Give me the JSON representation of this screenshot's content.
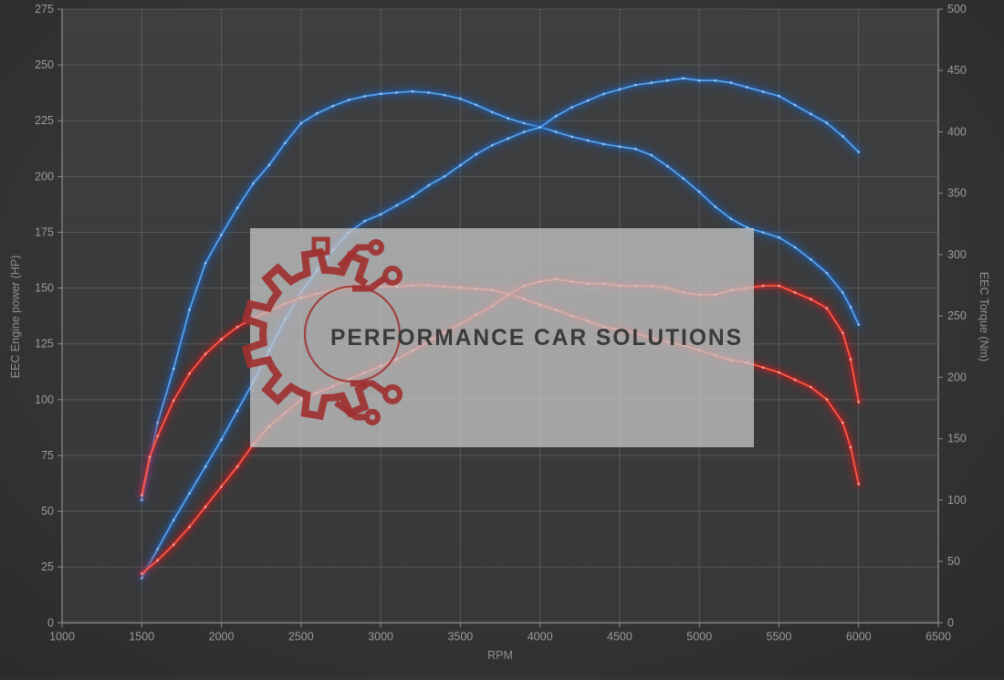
{
  "watermark": {
    "text": "PERFORMANCE CAR SOLUTIONS"
  },
  "colors": {
    "background": "#333435",
    "plot_fill_top": "#3e3f41",
    "plot_fill_bottom": "#38393a",
    "grid": "#5f5f5f",
    "axis": "#8d8d8d",
    "tick_text": "#9b9b9b",
    "blue_core": "#58a0e8",
    "blue_glow": "#1e5fb8",
    "blue_marker": "#9cc8f2",
    "red_core": "#ff5648",
    "red_glow": "#c01f1f",
    "red_marker": "#ffa49a",
    "watermark_fill": "#c8c8c8",
    "watermark_text": "#3a3a3a",
    "logo_red": "#9e3131"
  },
  "chart_data": {
    "type": "line",
    "title": "",
    "xlabel": "RPM",
    "ylabel_left": "EEC Engine power (HP)",
    "ylabel_right": "EEC Torque (Nm)",
    "x_range": [
      1000,
      6500
    ],
    "y_left_range": [
      0,
      275
    ],
    "y_right_range": [
      0,
      500
    ],
    "x_ticks": [
      1000,
      1500,
      2000,
      2500,
      3000,
      3500,
      4000,
      4500,
      5000,
      5500,
      6000,
      6500
    ],
    "y_left_ticks": [
      0,
      25,
      50,
      75,
      100,
      125,
      150,
      175,
      200,
      225,
      250,
      275
    ],
    "y_right_ticks": [
      0,
      50,
      100,
      150,
      200,
      250,
      300,
      350,
      400,
      450,
      500
    ],
    "grid": true,
    "legend_position": "none",
    "series": [
      {
        "name": "blue-torque",
        "axis": "right",
        "color_key": "blue",
        "units": "Nm",
        "points": [
          [
            1500,
            100
          ],
          [
            1550,
            132
          ],
          [
            1600,
            163
          ],
          [
            1700,
            207
          ],
          [
            1800,
            255
          ],
          [
            1900,
            293
          ],
          [
            2000,
            316
          ],
          [
            2100,
            338
          ],
          [
            2200,
            358
          ],
          [
            2300,
            373
          ],
          [
            2400,
            391
          ],
          [
            2500,
            407
          ],
          [
            2600,
            415
          ],
          [
            2700,
            421
          ],
          [
            2800,
            426
          ],
          [
            2900,
            429
          ],
          [
            3000,
            431
          ],
          [
            3100,
            432
          ],
          [
            3200,
            433
          ],
          [
            3300,
            432
          ],
          [
            3400,
            430
          ],
          [
            3500,
            427
          ],
          [
            3600,
            422
          ],
          [
            3700,
            416
          ],
          [
            3800,
            411
          ],
          [
            3900,
            407
          ],
          [
            4000,
            404
          ],
          [
            4100,
            400
          ],
          [
            4200,
            396
          ],
          [
            4300,
            393
          ],
          [
            4400,
            390
          ],
          [
            4500,
            388
          ],
          [
            4600,
            386
          ],
          [
            4700,
            381
          ],
          [
            4800,
            372
          ],
          [
            4900,
            362
          ],
          [
            5000,
            351
          ],
          [
            5100,
            339
          ],
          [
            5200,
            329
          ],
          [
            5300,
            322
          ],
          [
            5400,
            318
          ],
          [
            5500,
            314
          ],
          [
            5600,
            306
          ],
          [
            5700,
            296
          ],
          [
            5800,
            285
          ],
          [
            5900,
            269
          ],
          [
            5950,
            257
          ],
          [
            6000,
            243
          ]
        ]
      },
      {
        "name": "blue-power",
        "axis": "left",
        "color_key": "blue",
        "units": "HP",
        "points": [
          [
            1500,
            20
          ],
          [
            1600,
            33
          ],
          [
            1700,
            46
          ],
          [
            1800,
            58
          ],
          [
            1900,
            70
          ],
          [
            2000,
            82
          ],
          [
            2100,
            95
          ],
          [
            2200,
            108
          ],
          [
            2300,
            122
          ],
          [
            2400,
            136
          ],
          [
            2500,
            148
          ],
          [
            2600,
            158
          ],
          [
            2700,
            167
          ],
          [
            2800,
            175
          ],
          [
            2900,
            180
          ],
          [
            3000,
            183
          ],
          [
            3100,
            187
          ],
          [
            3200,
            191
          ],
          [
            3300,
            196
          ],
          [
            3400,
            200
          ],
          [
            3500,
            205
          ],
          [
            3600,
            210
          ],
          [
            3700,
            214
          ],
          [
            3800,
            217
          ],
          [
            3900,
            220
          ],
          [
            4000,
            222
          ],
          [
            4100,
            227
          ],
          [
            4200,
            231
          ],
          [
            4300,
            234
          ],
          [
            4400,
            237
          ],
          [
            4500,
            239
          ],
          [
            4600,
            241
          ],
          [
            4700,
            242
          ],
          [
            4800,
            243
          ],
          [
            4900,
            244
          ],
          [
            5000,
            243
          ],
          [
            5100,
            243
          ],
          [
            5200,
            242
          ],
          [
            5300,
            240
          ],
          [
            5400,
            238
          ],
          [
            5500,
            236
          ],
          [
            5600,
            232
          ],
          [
            5700,
            228
          ],
          [
            5800,
            224
          ],
          [
            5900,
            218
          ],
          [
            6000,
            211
          ]
        ]
      },
      {
        "name": "red-torque",
        "axis": "right",
        "color_key": "red",
        "units": "Nm",
        "points": [
          [
            1500,
            104
          ],
          [
            1550,
            135
          ],
          [
            1600,
            152
          ],
          [
            1700,
            181
          ],
          [
            1800,
            203
          ],
          [
            1900,
            219
          ],
          [
            2000,
            231
          ],
          [
            2100,
            241
          ],
          [
            2200,
            248
          ],
          [
            2300,
            254
          ],
          [
            2400,
            260
          ],
          [
            2500,
            265
          ],
          [
            2600,
            268
          ],
          [
            2700,
            271
          ],
          [
            2800,
            273
          ],
          [
            2900,
            274
          ],
          [
            3000,
            274
          ],
          [
            3100,
            274
          ],
          [
            3200,
            275
          ],
          [
            3300,
            275
          ],
          [
            3400,
            274
          ],
          [
            3500,
            273
          ],
          [
            3600,
            272
          ],
          [
            3700,
            271
          ],
          [
            3800,
            268
          ],
          [
            3900,
            264
          ],
          [
            4000,
            259
          ],
          [
            4100,
            255
          ],
          [
            4200,
            250
          ],
          [
            4300,
            246
          ],
          [
            4400,
            241
          ],
          [
            4500,
            239
          ],
          [
            4600,
            236
          ],
          [
            4700,
            232
          ],
          [
            4800,
            229
          ],
          [
            4900,
            226
          ],
          [
            5000,
            222
          ],
          [
            5100,
            218
          ],
          [
            5200,
            214
          ],
          [
            5300,
            212
          ],
          [
            5400,
            208
          ],
          [
            5500,
            204
          ],
          [
            5600,
            198
          ],
          [
            5700,
            192
          ],
          [
            5800,
            182
          ],
          [
            5900,
            163
          ],
          [
            5950,
            143
          ],
          [
            6000,
            113
          ]
        ]
      },
      {
        "name": "red-power",
        "axis": "left",
        "color_key": "red",
        "units": "HP",
        "points": [
          [
            1500,
            22
          ],
          [
            1600,
            28
          ],
          [
            1700,
            35
          ],
          [
            1800,
            43
          ],
          [
            1900,
            52
          ],
          [
            2000,
            61
          ],
          [
            2100,
            70
          ],
          [
            2200,
            80
          ],
          [
            2300,
            88
          ],
          [
            2400,
            94
          ],
          [
            2500,
            100
          ],
          [
            2600,
            103
          ],
          [
            2700,
            106
          ],
          [
            2800,
            109
          ],
          [
            2900,
            112
          ],
          [
            3000,
            115
          ],
          [
            3100,
            118
          ],
          [
            3200,
            122
          ],
          [
            3300,
            126
          ],
          [
            3400,
            130
          ],
          [
            3500,
            134
          ],
          [
            3600,
            138
          ],
          [
            3700,
            142
          ],
          [
            3800,
            147
          ],
          [
            3900,
            151
          ],
          [
            4000,
            153
          ],
          [
            4100,
            154
          ],
          [
            4200,
            153
          ],
          [
            4300,
            152
          ],
          [
            4400,
            152
          ],
          [
            4500,
            151
          ],
          [
            4600,
            151
          ],
          [
            4700,
            151
          ],
          [
            4800,
            150
          ],
          [
            4900,
            148
          ],
          [
            5000,
            147
          ],
          [
            5100,
            147
          ],
          [
            5200,
            149
          ],
          [
            5300,
            150
          ],
          [
            5400,
            151
          ],
          [
            5500,
            151
          ],
          [
            5600,
            148
          ],
          [
            5700,
            145
          ],
          [
            5800,
            141
          ],
          [
            5900,
            130
          ],
          [
            5950,
            118
          ],
          [
            6000,
            99
          ]
        ]
      }
    ]
  }
}
